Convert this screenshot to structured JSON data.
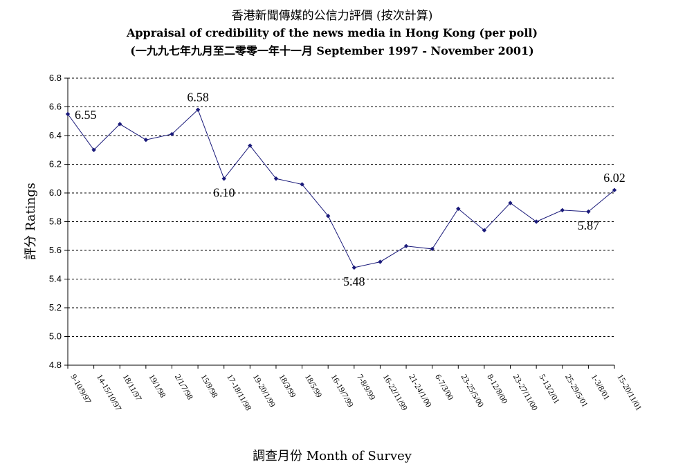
{
  "chart_data": {
    "type": "line",
    "title_zh": "香港新聞傳媒的公信力評價 (按次計算)",
    "title_en": "Appraisal of credibility of the news media in Hong Kong (per poll)",
    "subtitle": "(一九九七年九月至二零零一年十一月 September 1997 - November 2001)",
    "xlabel": "調查月份 Month of Survey",
    "ylabel": "評分 Ratings",
    "ylim": [
      4.8,
      6.8
    ],
    "yticks": [
      "4.8",
      "5.0",
      "5.2",
      "5.4",
      "5.6",
      "5.8",
      "6.0",
      "6.2",
      "6.4",
      "6.6",
      "6.8"
    ],
    "grid": true,
    "line_color": "#1a1a7a",
    "categories": [
      "9-10/9/97",
      "14-15/10/97",
      "18/11/97",
      "19/1/98",
      "2/1/7/98",
      "15/9/98",
      "17-18/11/98",
      "19-20/1/99",
      "18/3/99",
      "18/5/99",
      "16-19/7/99",
      "7-8/9/99",
      "16-22/11/99",
      "21-24/1/00",
      "6-7/3/00",
      "23-25/5/00",
      "8-12/8/00",
      "23-27/11/00",
      "5-13/2/01",
      "25-29/5/01",
      "1-3/8/01",
      "15-20/11/01"
    ],
    "values": [
      6.55,
      6.3,
      6.48,
      6.37,
      6.41,
      6.58,
      6.1,
      6.33,
      6.1,
      6.06,
      5.84,
      5.48,
      5.52,
      5.63,
      5.61,
      5.89,
      5.74,
      5.93,
      5.8,
      5.88,
      5.87,
      6.02
    ],
    "data_labels": [
      {
        "index": 0,
        "text": "6.55",
        "pos": "right"
      },
      {
        "index": 5,
        "text": "6.58",
        "pos": "above"
      },
      {
        "index": 6,
        "text": "6.10",
        "pos": "below"
      },
      {
        "index": 11,
        "text": "5.48",
        "pos": "below"
      },
      {
        "index": 20,
        "text": "5.87",
        "pos": "below"
      },
      {
        "index": 21,
        "text": "6.02",
        "pos": "above"
      }
    ]
  }
}
